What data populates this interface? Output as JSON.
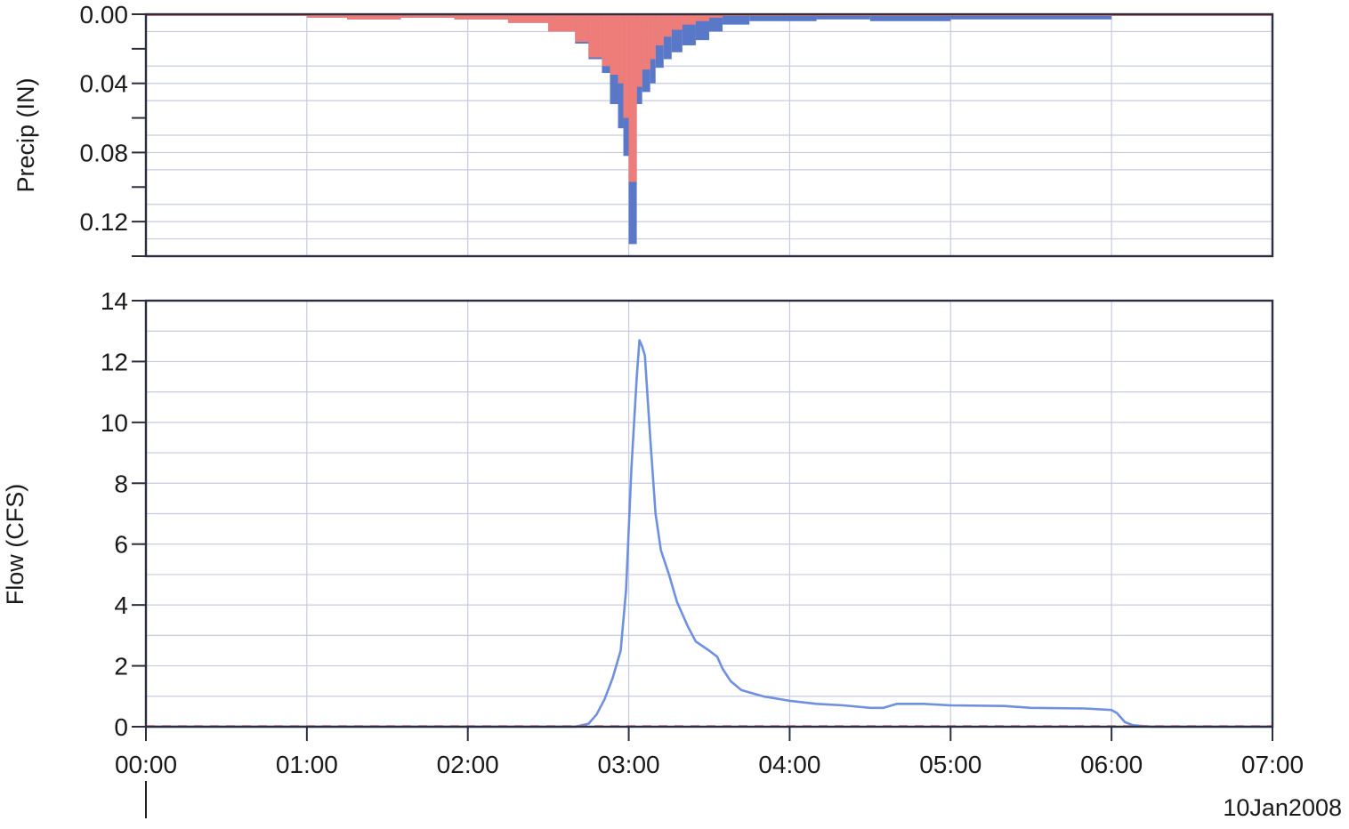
{
  "colors": {
    "background": "#ffffff",
    "grid": "#c8cbe0",
    "frame": "#2a2e40",
    "precip_total": "#5a78c8",
    "precip_loss": "#ee7c78",
    "flow_line": "#6f8fe0",
    "baseline_dash": "#222222"
  },
  "x_axis": {
    "ticks": [
      "00:00",
      "01:00",
      "02:00",
      "03:00",
      "04:00",
      "05:00",
      "06:00",
      "07:00"
    ],
    "date_label": "10Jan2008"
  },
  "chart_data": [
    {
      "type": "bar",
      "name": "precip",
      "ylabel": "Precip (IN)",
      "ylim": [
        0,
        0.14
      ],
      "y_inverted": true,
      "yticks": [
        0.0,
        0.04,
        0.08,
        0.12
      ],
      "ytick_labels": [
        "0.00",
        "0.04",
        "0.08",
        "0.12"
      ],
      "xlim": [
        "00:00",
        "07:00"
      ],
      "grid": true,
      "series": [
        {
          "role": "total",
          "color": "#5a78c8",
          "values": [
            [
              "00:00",
              "01:00",
              0.001
            ],
            [
              "01:00",
              "01:15",
              0.002
            ],
            [
              "01:15",
              "01:35",
              0.003
            ],
            [
              "01:35",
              "01:55",
              0.002
            ],
            [
              "01:55",
              "02:15",
              0.003
            ],
            [
              "02:15",
              "02:30",
              0.005
            ],
            [
              "02:30",
              "02:40",
              0.01
            ],
            [
              "02:40",
              "02:45",
              0.017
            ],
            [
              "02:45",
              "02:50",
              0.026
            ],
            [
              "02:50",
              "02:53",
              0.034
            ],
            [
              "02:53",
              "02:56",
              0.052
            ],
            [
              "02:56",
              "02:58",
              0.066
            ],
            [
              "02:58",
              "03:00",
              0.082
            ],
            [
              "03:00",
              "03:03",
              0.133
            ],
            [
              "03:03",
              "03:05",
              0.052
            ],
            [
              "03:05",
              "03:08",
              0.045
            ],
            [
              "03:08",
              "03:10",
              0.04
            ],
            [
              "03:10",
              "03:13",
              0.031
            ],
            [
              "03:13",
              "03:16",
              0.026
            ],
            [
              "03:16",
              "03:20",
              0.022
            ],
            [
              "03:20",
              "03:25",
              0.018
            ],
            [
              "03:25",
              "03:30",
              0.015
            ],
            [
              "03:30",
              "03:35",
              0.01
            ],
            [
              "03:35",
              "03:45",
              0.006
            ],
            [
              "03:45",
              "04:10",
              0.004
            ],
            [
              "04:10",
              "04:30",
              0.003
            ],
            [
              "04:30",
              "05:00",
              0.004
            ],
            [
              "05:00",
              "06:00",
              0.003
            ],
            [
              "06:00",
              "07:00",
              0.001
            ]
          ]
        },
        {
          "role": "loss",
          "color": "#ee7c78",
          "values": [
            [
              "00:00",
              "01:00",
              0.001
            ],
            [
              "01:00",
              "01:15",
              0.002
            ],
            [
              "01:15",
              "01:35",
              0.003
            ],
            [
              "01:35",
              "01:55",
              0.002
            ],
            [
              "01:55",
              "02:15",
              0.003
            ],
            [
              "02:15",
              "02:30",
              0.005
            ],
            [
              "02:30",
              "02:40",
              0.01
            ],
            [
              "02:40",
              "02:45",
              0.016
            ],
            [
              "02:45",
              "02:50",
              0.025
            ],
            [
              "02:50",
              "02:53",
              0.03
            ],
            [
              "02:53",
              "02:56",
              0.035
            ],
            [
              "02:56",
              "02:58",
              0.04
            ],
            [
              "02:58",
              "03:00",
              0.06
            ],
            [
              "03:00",
              "03:03",
              0.097
            ],
            [
              "03:03",
              "03:05",
              0.042
            ],
            [
              "03:05",
              "03:08",
              0.032
            ],
            [
              "03:08",
              "03:10",
              0.026
            ],
            [
              "03:10",
              "03:13",
              0.018
            ],
            [
              "03:13",
              "03:16",
              0.013
            ],
            [
              "03:16",
              "03:20",
              0.009
            ],
            [
              "03:20",
              "03:25",
              0.006
            ],
            [
              "03:25",
              "03:30",
              0.004
            ],
            [
              "03:30",
              "03:35",
              0.002
            ],
            [
              "03:35",
              "03:45",
              0.001
            ],
            [
              "03:45",
              "04:10",
              0.001
            ],
            [
              "04:10",
              "04:30",
              0.001
            ],
            [
              "04:30",
              "05:00",
              0.001
            ],
            [
              "05:00",
              "06:00",
              0.001
            ],
            [
              "06:00",
              "07:00",
              0.001
            ]
          ]
        }
      ]
    },
    {
      "type": "line",
      "name": "flow",
      "ylabel": "Flow (CFS)",
      "ylim": [
        0,
        14
      ],
      "yticks": [
        0,
        2,
        4,
        6,
        8,
        10,
        12,
        14
      ],
      "ytick_labels": [
        "0",
        "2",
        "4",
        "6",
        "8",
        "10",
        "12",
        "14"
      ],
      "xlim": [
        "00:00",
        "07:00"
      ],
      "grid": true,
      "series": [
        {
          "role": "flow",
          "color": "#6f8fe0",
          "points": [
            [
              "00:00",
              0.0
            ],
            [
              "02:40",
              0.0
            ],
            [
              "02:45",
              0.1
            ],
            [
              "02:48",
              0.4
            ],
            [
              "02:51",
              0.9
            ],
            [
              "02:54",
              1.6
            ],
            [
              "02:57",
              2.5
            ],
            [
              "02:59",
              4.5
            ],
            [
              "03:01",
              8.5
            ],
            [
              "03:03",
              11.5
            ],
            [
              "03:04",
              12.7
            ],
            [
              "03:05",
              12.5
            ],
            [
              "03:06",
              12.2
            ],
            [
              "03:08",
              9.5
            ],
            [
              "03:10",
              7.0
            ],
            [
              "03:12",
              5.8
            ],
            [
              "03:15",
              5.0
            ],
            [
              "03:18",
              4.1
            ],
            [
              "03:22",
              3.3
            ],
            [
              "03:25",
              2.8
            ],
            [
              "03:30",
              2.5
            ],
            [
              "03:33",
              2.3
            ],
            [
              "03:35",
              1.9
            ],
            [
              "03:38",
              1.5
            ],
            [
              "03:42",
              1.2
            ],
            [
              "03:50",
              1.0
            ],
            [
              "04:00",
              0.85
            ],
            [
              "04:10",
              0.75
            ],
            [
              "04:20",
              0.7
            ],
            [
              "04:30",
              0.62
            ],
            [
              "04:35",
              0.62
            ],
            [
              "04:40",
              0.75
            ],
            [
              "04:50",
              0.75
            ],
            [
              "05:00",
              0.7
            ],
            [
              "05:20",
              0.68
            ],
            [
              "05:30",
              0.62
            ],
            [
              "05:50",
              0.6
            ],
            [
              "06:00",
              0.55
            ],
            [
              "06:02",
              0.45
            ],
            [
              "06:05",
              0.15
            ],
            [
              "06:08",
              0.05
            ],
            [
              "06:15",
              0.0
            ],
            [
              "07:00",
              0.0
            ]
          ]
        },
        {
          "role": "baseline",
          "color": "#222222",
          "dashed": true,
          "points": [
            [
              "00:00",
              0.0
            ],
            [
              "07:00",
              0.0
            ]
          ]
        }
      ]
    }
  ]
}
